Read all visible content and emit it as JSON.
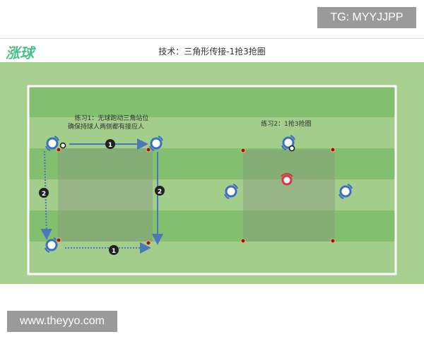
{
  "watermark_top": "TG: MYYJJPP",
  "watermark_bottom": "www.theyyo.com",
  "header": {
    "logo": "涨球",
    "title": "技术：三角形传接-1抢3抢圈"
  },
  "drill1": {
    "line1": "练习1：无球跑动三角站位",
    "line2": "确保持球人两侧都有接应人",
    "step1": "1",
    "step2": "2"
  },
  "drill2": {
    "label": "练习2：1抢3抢圈"
  },
  "colors": {
    "field_outer": "#a6cf90",
    "stripe_dark": "#82bf6e",
    "stripe_light": "#a2cd8b",
    "player": "#3a6fc4",
    "defender": "#d9363e",
    "cone": "#8b1a1a",
    "arrow": "#4a78b8"
  }
}
